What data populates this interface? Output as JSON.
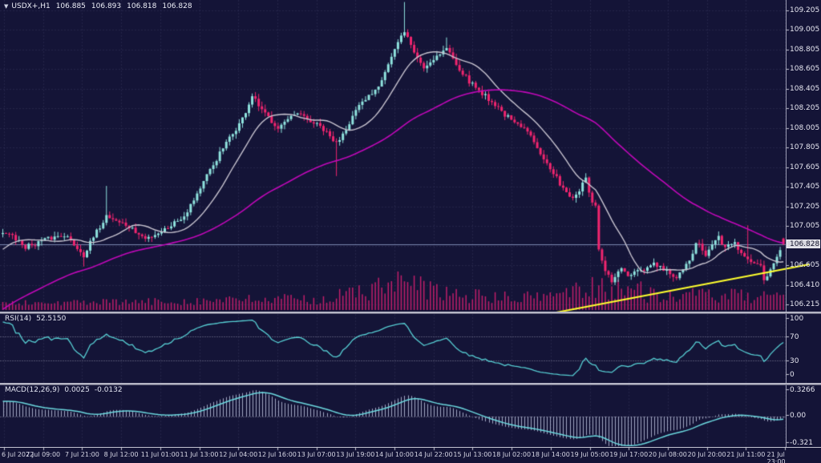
{
  "window": {
    "title_icon": "▼",
    "symbol_period": "USDX+,H1",
    "quote_open": "106.885",
    "quote_high": "106.893",
    "quote_low": "106.818",
    "quote_close": "106.828"
  },
  "panes": {
    "rsi": {
      "label": "RSI(14)",
      "value": "52.5150",
      "axis_labels": [
        "100",
        "70",
        "30",
        "0"
      ]
    },
    "macd": {
      "label": "MACD(12,26,9)",
      "value_main": "0.0025",
      "value_signal": "-0.0132",
      "axis_labels": [
        "0.3266",
        "0.00",
        "-0.321"
      ]
    }
  },
  "current_price": "106.828",
  "price_axis_labels": [
    "109.205",
    "109.005",
    "108.805",
    "108.605",
    "108.405",
    "108.205",
    "108.005",
    "107.805",
    "107.605",
    "107.405",
    "107.205",
    "107.005",
    "106.805",
    "106.605",
    "106.410",
    "106.215"
  ],
  "time_axis_labels": [
    "6 Jul 2022",
    "7 Jul 09:00",
    "7 Jul 21:00",
    "8 Jul 12:00",
    "11 Jul 01:00",
    "11 Jul 13:00",
    "12 Jul 04:00",
    "12 Jul 16:00",
    "13 Jul 07:00",
    "13 Jul 19:00",
    "14 Jul 10:00",
    "14 Jul 22:00",
    "15 Jul 13:00",
    "18 Jul 02:00",
    "18 Jul 14:00",
    "19 Jul 05:00",
    "19 Jul 17:00",
    "20 Jul 08:00",
    "20 Jul 20:00",
    "21 Jul 11:00",
    "21 Jul 23:00"
  ],
  "colors": {
    "background": "#141437",
    "grid": "#34345c",
    "candle_up": "#8fe3de",
    "candle_down": "#f1256f",
    "ma_fast": "#c7c3cf",
    "ma_slow": "#c008b8",
    "trendline": "#ffff2e",
    "volume": "#c01e6a",
    "rsi_line": "#57cfd4",
    "macd_signal": "#6cd9df",
    "macd_hist": "#a2a7c4",
    "level_line": "#9090aa",
    "bid_line": "#7b87b0",
    "axis_text": "#e6e6f0"
  },
  "chart_data": {
    "type": "candlestick",
    "symbol": "USDX+",
    "timeframe": "H1",
    "title": "USDX+,H1 106.885 106.893 106.818 106.828",
    "ohlc_current": {
      "open": 106.885,
      "high": 106.893,
      "low": 106.818,
      "close": 106.828
    },
    "price_axis_range": {
      "top_tick": 109.205,
      "bottom_tick": 106.215,
      "ticks": [
        109.205,
        109.005,
        108.805,
        108.605,
        108.405,
        108.205,
        108.005,
        107.805,
        107.605,
        107.405,
        107.205,
        107.005,
        106.805,
        106.605,
        106.41,
        106.215
      ]
    },
    "candles_count": 242,
    "bars_per_gridline": 12,
    "close_anchors": [
      [
        1,
        106.95
      ],
      [
        7,
        106.8
      ],
      [
        14,
        106.88
      ],
      [
        19,
        106.93
      ],
      [
        25,
        106.72
      ],
      [
        32,
        107.12
      ],
      [
        38,
        107.02
      ],
      [
        44,
        106.88
      ],
      [
        50,
        106.98
      ],
      [
        56,
        107.12
      ],
      [
        61,
        107.4
      ],
      [
        67,
        107.75
      ],
      [
        74,
        108.1
      ],
      [
        77,
        108.33
      ],
      [
        80,
        108.18
      ],
      [
        85,
        108.02
      ],
      [
        91,
        108.15
      ],
      [
        98,
        108.02
      ],
      [
        103,
        107.85
      ],
      [
        109,
        108.18
      ],
      [
        116,
        108.45
      ],
      [
        121,
        108.8
      ],
      [
        124,
        109.0
      ],
      [
        127,
        108.78
      ],
      [
        130,
        108.62
      ],
      [
        133,
        108.72
      ],
      [
        137,
        108.82
      ],
      [
        143,
        108.52
      ],
      [
        145,
        108.45
      ],
      [
        151,
        108.28
      ],
      [
        157,
        108.08
      ],
      [
        163,
        107.95
      ],
      [
        169,
        107.58
      ],
      [
        172,
        107.45
      ],
      [
        176,
        107.28
      ],
      [
        180,
        107.48
      ],
      [
        182,
        107.25
      ],
      [
        183,
        107.2
      ],
      [
        184,
        106.75
      ],
      [
        186,
        106.55
      ],
      [
        188,
        106.45
      ],
      [
        191,
        106.58
      ],
      [
        193,
        106.5
      ],
      [
        197,
        106.55
      ],
      [
        201,
        106.62
      ],
      [
        205,
        106.55
      ],
      [
        208,
        106.48
      ],
      [
        212,
        106.65
      ],
      [
        214,
        106.85
      ],
      [
        217,
        106.72
      ],
      [
        221,
        106.9
      ],
      [
        223,
        106.78
      ],
      [
        226,
        106.85
      ],
      [
        229,
        106.68
      ],
      [
        233,
        106.62
      ],
      [
        234,
        106.6
      ],
      [
        235,
        106.46
      ],
      [
        239,
        106.72
      ],
      [
        241,
        106.828
      ]
    ],
    "wick_events": [
      {
        "t": 25,
        "low": 106.6
      },
      {
        "t": 32,
        "high": 107.42
      },
      {
        "t": 103,
        "low": 107.52
      },
      {
        "t": 124,
        "high": 109.29
      },
      {
        "t": 137,
        "high": 108.93
      },
      {
        "t": 230,
        "high": 107.02
      },
      {
        "t": 235,
        "low": 106.42
      }
    ],
    "volume_profile": [
      [
        0,
        0.18
      ],
      [
        40,
        0.22
      ],
      [
        70,
        0.3
      ],
      [
        100,
        0.35
      ],
      [
        122,
        0.95
      ],
      [
        140,
        0.5
      ],
      [
        160,
        0.35
      ],
      [
        186,
        0.9
      ],
      [
        205,
        0.45
      ],
      [
        220,
        0.5
      ],
      [
        241,
        0.35
      ]
    ],
    "indicators": {
      "ma_fast": {
        "type": "SMA",
        "period": 14
      },
      "ma_slow": {
        "type": "LWMA",
        "period": 100
      },
      "rsi": {
        "period": 14,
        "current": 52.515,
        "levels": [
          70,
          30
        ],
        "scale": [
          0,
          100
        ]
      },
      "macd": {
        "fast": 12,
        "slow": 26,
        "signal": 9,
        "current_macd": 0.0025,
        "current_signal": -0.0132,
        "scale_top": 0.3266,
        "scale_bottom": -0.321
      }
    },
    "trendline": {
      "t1": 171,
      "p1": 106.133,
      "t2": 249,
      "p2": 106.622
    },
    "bid_line": 106.828,
    "pre_trend": {
      "bars": 110,
      "start_price": 104.8
    }
  }
}
